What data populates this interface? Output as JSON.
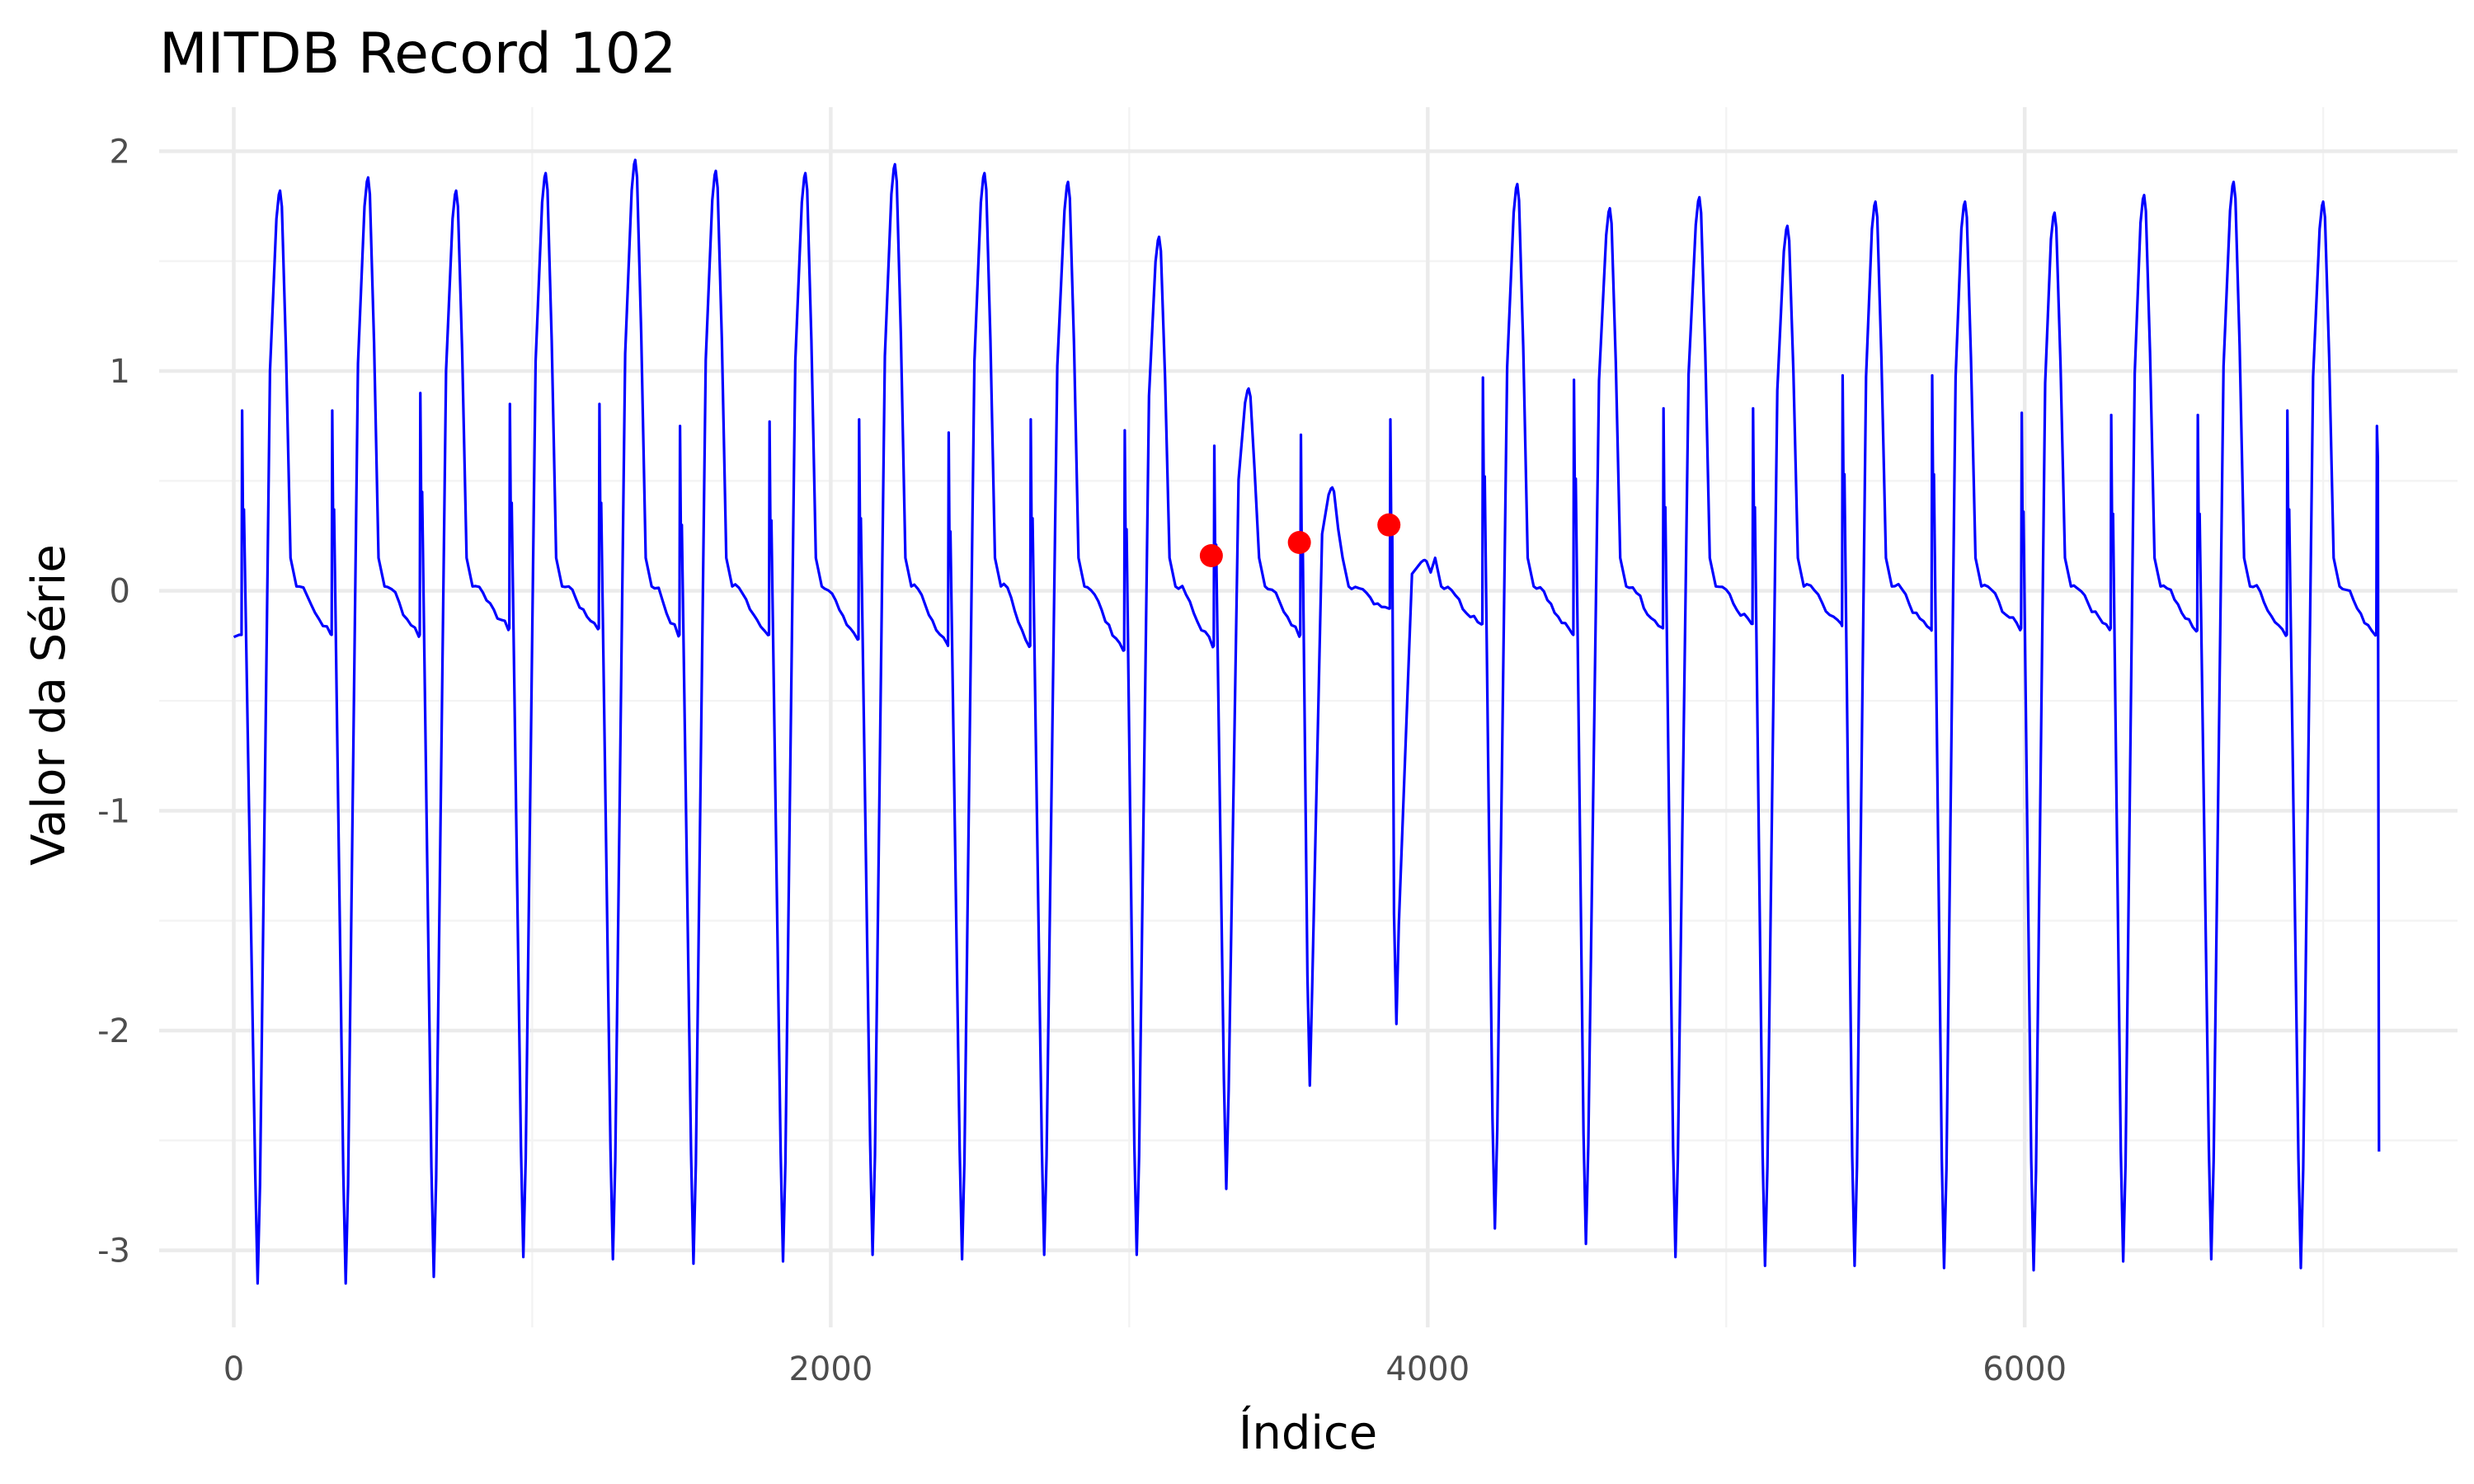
{
  "chart_data": {
    "type": "line",
    "title": "MITDB Record 102",
    "xlabel": "Índice",
    "ylabel": "Valor da Série",
    "xlim": [
      -250,
      7450
    ],
    "ylim": [
      -3.35,
      2.2
    ],
    "x_ticks": [
      0,
      2000,
      4000,
      6000
    ],
    "x_tick_labels": [
      "0",
      "2000",
      "4000",
      "6000"
    ],
    "y_ticks": [
      -3,
      -2,
      -1,
      0,
      1,
      2
    ],
    "y_tick_labels": [
      "-3",
      "-2",
      "-1",
      "0",
      "1",
      "2"
    ],
    "grid": true,
    "series": [
      {
        "style": "line",
        "color": "#0000ff",
        "beats": [
          {
            "spike": 28,
            "spike_v": 0.82,
            "trough": 80,
            "trough_v": -3.15,
            "peak": 155,
            "peak_v": 1.82,
            "base": -0.2
          },
          {
            "spike": 330,
            "spike_v": 0.82,
            "trough": 375,
            "trough_v": -3.15,
            "peak": 450,
            "peak_v": 1.88,
            "base": -0.2
          },
          {
            "spike": 625,
            "spike_v": 0.9,
            "trough": 670,
            "trough_v": -3.12,
            "peak": 745,
            "peak_v": 1.82,
            "base": -0.2
          },
          {
            "spike": 925,
            "spike_v": 0.85,
            "trough": 970,
            "trough_v": -3.03,
            "peak": 1045,
            "peak_v": 1.9,
            "base": -0.17
          },
          {
            "spike": 1225,
            "spike_v": 0.85,
            "trough": 1270,
            "trough_v": -3.04,
            "peak": 1345,
            "peak_v": 1.96,
            "base": -0.17
          },
          {
            "spike": 1495,
            "spike_v": 0.75,
            "trough": 1540,
            "trough_v": -3.06,
            "peak": 1615,
            "peak_v": 1.91,
            "base": -0.2
          },
          {
            "spike": 1795,
            "spike_v": 0.77,
            "trough": 1840,
            "trough_v": -3.05,
            "peak": 1915,
            "peak_v": 1.9,
            "base": -0.2
          },
          {
            "spike": 2095,
            "spike_v": 0.78,
            "trough": 2140,
            "trough_v": -3.02,
            "peak": 2215,
            "peak_v": 1.94,
            "base": -0.22
          },
          {
            "spike": 2395,
            "spike_v": 0.72,
            "trough": 2440,
            "trough_v": -3.04,
            "peak": 2515,
            "peak_v": 1.9,
            "base": -0.25
          },
          {
            "spike": 2670,
            "spike_v": 0.78,
            "trough": 2715,
            "trough_v": -3.02,
            "peak": 2795,
            "peak_v": 1.86,
            "base": -0.25
          },
          {
            "spike": 2985,
            "spike_v": 0.73,
            "trough": 3025,
            "trough_v": -3.02,
            "peak": 3100,
            "peak_v": 1.61,
            "base": -0.27
          },
          {
            "spike": 3285,
            "spike_v": 0.66,
            "trough": 3325,
            "trough_v": -2.72,
            "peak": 3400,
            "peak_v": 0.92,
            "base": -0.25
          },
          {
            "spike": 3575,
            "spike_v": 0.71,
            "trough": 3605,
            "trough_v": -2.25,
            "peak": 3680,
            "peak_v": 0.47,
            "base": -0.2
          },
          {
            "spike": 3875,
            "spike_v": 0.78,
            "trough": 3895,
            "trough_v": -1.97,
            "peak": 3990,
            "peak_v": 0.14,
            "base": -0.08
          },
          {
            "spike": 4185,
            "spike_v": 0.97,
            "trough": 4225,
            "trough_v": -2.9,
            "peak": 4300,
            "peak_v": 1.85,
            "base": -0.15
          },
          {
            "spike": 4490,
            "spike_v": 0.96,
            "trough": 4530,
            "trough_v": -2.97,
            "peak": 4610,
            "peak_v": 1.74,
            "base": -0.2
          },
          {
            "spike": 4790,
            "spike_v": 0.83,
            "trough": 4830,
            "trough_v": -3.03,
            "peak": 4910,
            "peak_v": 1.79,
            "base": -0.17
          },
          {
            "spike": 5090,
            "spike_v": 0.83,
            "trough": 5130,
            "trough_v": -3.07,
            "peak": 5205,
            "peak_v": 1.66,
            "base": -0.15
          },
          {
            "spike": 5390,
            "spike_v": 0.98,
            "trough": 5430,
            "trough_v": -3.07,
            "peak": 5500,
            "peak_v": 1.77,
            "base": -0.16
          },
          {
            "spike": 5690,
            "spike_v": 0.98,
            "trough": 5730,
            "trough_v": -3.08,
            "peak": 5800,
            "peak_v": 1.77,
            "base": -0.18
          },
          {
            "spike": 5990,
            "spike_v": 0.81,
            "trough": 6030,
            "trough_v": -3.09,
            "peak": 6100,
            "peak_v": 1.72,
            "base": -0.17
          },
          {
            "spike": 6290,
            "spike_v": 0.8,
            "trough": 6330,
            "trough_v": -3.05,
            "peak": 6400,
            "peak_v": 1.8,
            "base": -0.17
          },
          {
            "spike": 6580,
            "spike_v": 0.8,
            "trough": 6625,
            "trough_v": -3.04,
            "peak": 6700,
            "peak_v": 1.86,
            "base": -0.18
          },
          {
            "spike": 6880,
            "spike_v": 0.82,
            "trough": 6925,
            "trough_v": -3.08,
            "peak": 7000,
            "peak_v": 1.77,
            "base": -0.2
          },
          {
            "spike": 7180,
            "spike_v": 0.75,
            "end_v": -2.55
          }
        ]
      },
      {
        "style": "points",
        "color": "#ff0000",
        "points": [
          [
            3275,
            0.16
          ],
          [
            3570,
            0.22
          ],
          [
            3870,
            0.3
          ]
        ]
      }
    ]
  }
}
